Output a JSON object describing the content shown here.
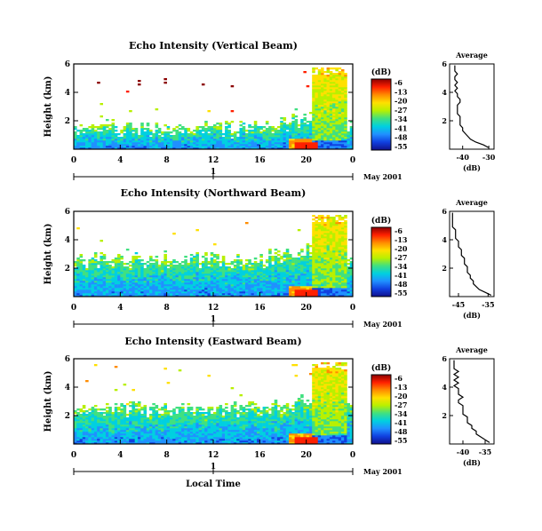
{
  "chart_data": {
    "type": "heatmap",
    "xlabel": "Local Time",
    "date_label": "May 2001",
    "day_label": "1",
    "x_ticks": [
      "0",
      "4",
      "8",
      "12",
      "16",
      "20",
      "0"
    ],
    "y_ticks": [
      "2",
      "4",
      "6"
    ],
    "xlim": [
      0,
      24
    ],
    "ylim": [
      0,
      6
    ],
    "ylabel": "Height (km)",
    "colorbar": {
      "unit": "(dB)",
      "labels": [
        "-6",
        "-13",
        "-20",
        "-27",
        "-34",
        "-41",
        "-48",
        "-55"
      ],
      "colors": [
        "#8b0000",
        "#ff2000",
        "#ff8c00",
        "#ffe000",
        "#b8f000",
        "#40e080",
        "#00d0e0",
        "#2090ff",
        "#1040e0",
        "#10108b"
      ]
    },
    "panels": [
      {
        "title": "Echo Intensity (Vertical Beam)",
        "profile_title": "Average",
        "profile_xlabel": "(dB)",
        "profile_xticks": [
          "-40",
          "-30"
        ],
        "profile_xlim": [
          -45,
          -28
        ],
        "profile": {
          "height": [
            0.1,
            0.3,
            0.5,
            0.7,
            0.9,
            1.1,
            1.3,
            1.5,
            1.7,
            1.9,
            2.1,
            2.3,
            2.5,
            2.7,
            2.9,
            3.1,
            3.3,
            3.5,
            3.7,
            3.9,
            4.1,
            4.3,
            4.5,
            4.7,
            4.9,
            5.1,
            5.3,
            5.5,
            5.7,
            5.9
          ],
          "db": [
            -30,
            -32,
            -35,
            -37,
            -38,
            -39,
            -40,
            -40,
            -41,
            -41,
            -41,
            -41,
            -42,
            -42,
            -42,
            -42,
            -41,
            -41,
            -42,
            -42,
            -43,
            -42,
            -43,
            -42,
            -43,
            -43,
            -42,
            -43,
            -43,
            -43
          ]
        },
        "echo_top_km": 1.6
      },
      {
        "title": "Echo Intensity (Northward Beam)",
        "profile_title": "Average",
        "profile_xlabel": "(dB)",
        "profile_xticks": [
          "-45",
          "-35"
        ],
        "profile_xlim": [
          -48,
          -33
        ],
        "profile": {
          "height": [
            0.1,
            0.3,
            0.5,
            0.7,
            0.9,
            1.1,
            1.3,
            1.5,
            1.7,
            1.9,
            2.1,
            2.3,
            2.5,
            2.7,
            2.9,
            3.1,
            3.3,
            3.5,
            3.7,
            3.9,
            4.1,
            4.3,
            4.5,
            4.7,
            4.9,
            5.1,
            5.3,
            5.5,
            5.7,
            5.9
          ],
          "db": [
            -34,
            -36,
            -38,
            -39,
            -40,
            -40,
            -41,
            -41,
            -42,
            -42,
            -42,
            -43,
            -43,
            -43,
            -44,
            -44,
            -44,
            -45,
            -45,
            -45,
            -46,
            -46,
            -46,
            -46,
            -47,
            -47,
            -47,
            -47,
            -47,
            -47
          ]
        },
        "echo_top_km": 2.8
      },
      {
        "title": "Echo Intensity (Eastward Beam)",
        "profile_title": "Average",
        "profile_xlabel": "(dB)",
        "profile_xticks": [
          "-40",
          "-35"
        ],
        "profile_xlim": [
          -43,
          -33
        ],
        "profile": {
          "height": [
            0.1,
            0.3,
            0.5,
            0.7,
            0.9,
            1.1,
            1.3,
            1.5,
            1.7,
            1.9,
            2.1,
            2.3,
            2.5,
            2.7,
            2.9,
            3.1,
            3.3,
            3.5,
            3.7,
            3.9,
            4.1,
            4.3,
            4.5,
            4.7,
            4.9,
            5.1,
            5.3,
            5.5,
            5.7,
            5.9
          ],
          "db": [
            -34,
            -35,
            -36,
            -37,
            -37,
            -38,
            -38,
            -39,
            -39,
            -39,
            -40,
            -40,
            -40,
            -40,
            -41,
            -41,
            -40,
            -41,
            -41,
            -41,
            -42,
            -41,
            -42,
            -41,
            -42,
            -41,
            -42,
            -42,
            -42,
            -42
          ]
        },
        "echo_top_km": 2.6
      }
    ]
  }
}
